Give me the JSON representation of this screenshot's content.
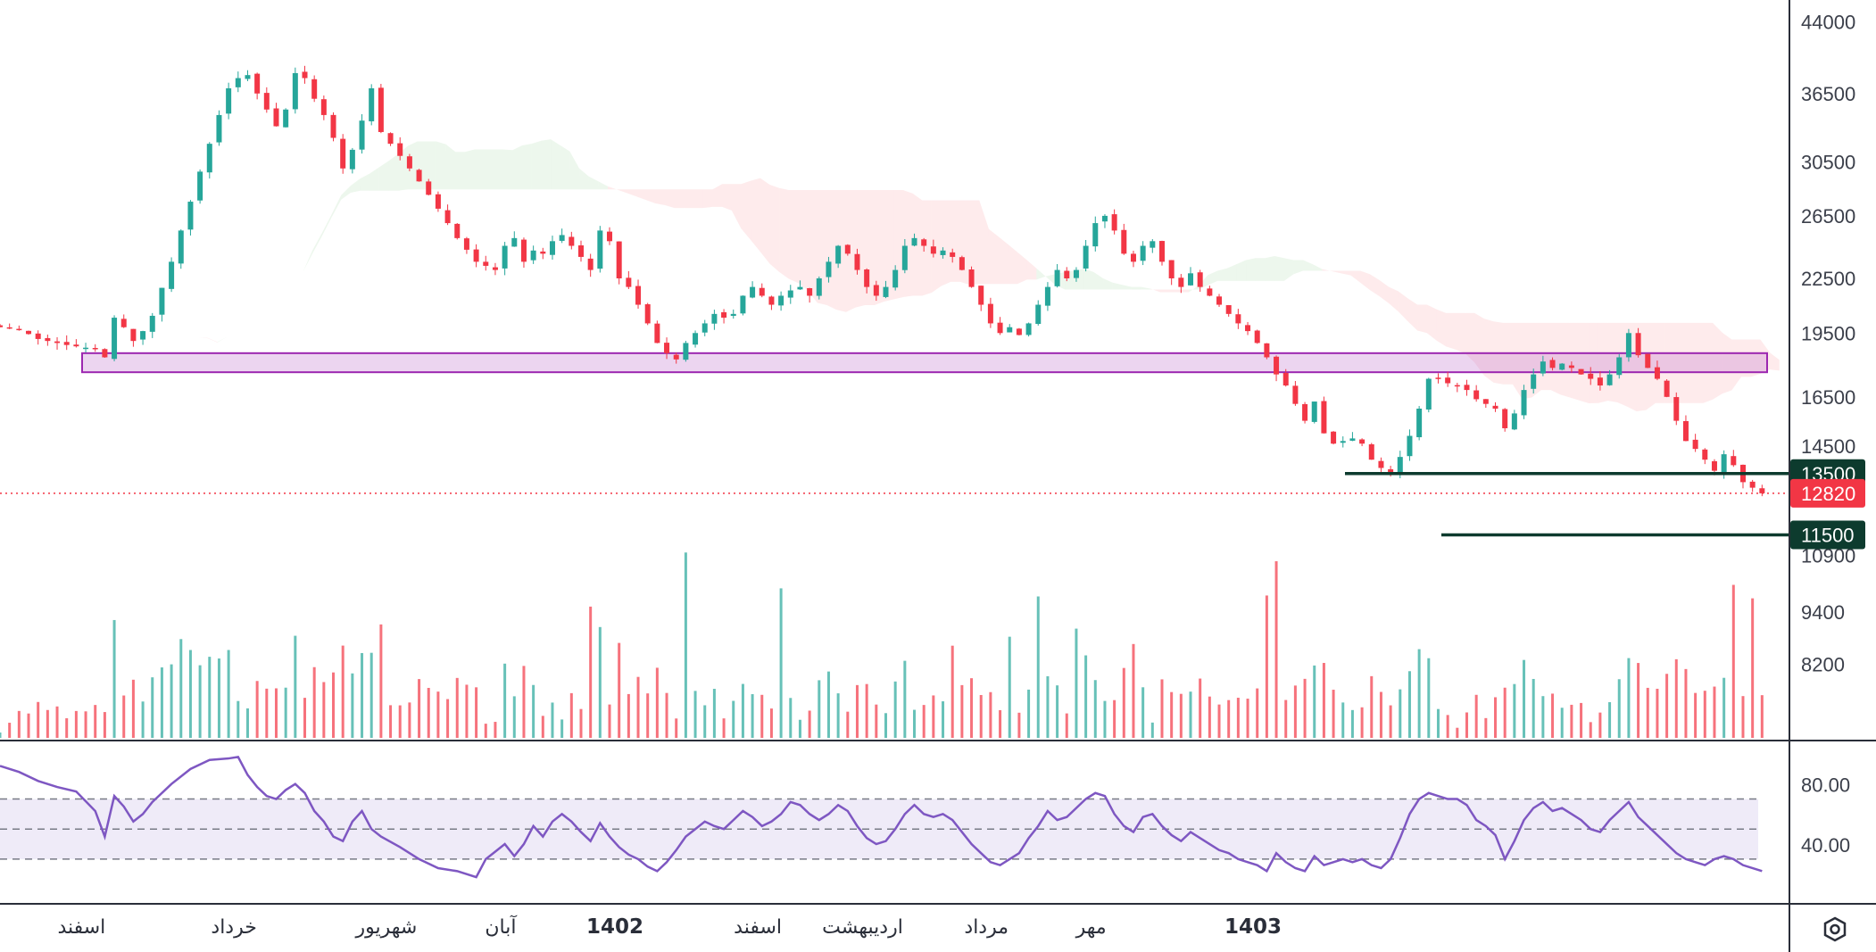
{
  "chart_data": {
    "type": "candlestick",
    "price_axis": {
      "scale": "log",
      "ticks": [
        "44000",
        "36500",
        "30500",
        "26500",
        "22500",
        "19500",
        "16500",
        "14500",
        "12820",
        "10900",
        "9400",
        "8200"
      ],
      "range": [
        7200,
        50000
      ]
    },
    "time_axis": {
      "ticks": [
        {
          "label": "اسفند",
          "bold": false
        },
        {
          "label": "خرداد",
          "bold": false
        },
        {
          "label": "شهریور",
          "bold": false
        },
        {
          "label": "آبان",
          "bold": false
        },
        {
          "label": "1402",
          "bold": true
        },
        {
          "label": "اسفند",
          "bold": false
        },
        {
          "label": "اردیبهشت",
          "bold": false
        },
        {
          "label": "مرداد",
          "bold": false
        },
        {
          "label": "مهر",
          "bold": false
        },
        {
          "label": "1403",
          "bold": true
        }
      ]
    },
    "price_tags": [
      {
        "label": "13500",
        "value": 13500,
        "color": "#0d3b2e"
      },
      {
        "label": "12820",
        "value": 12820,
        "color": "#f23645"
      },
      {
        "label": "11500",
        "value": 11500,
        "color": "#0d3b2e"
      }
    ],
    "support_levels": [
      13500,
      11500
    ],
    "last_price": 12820,
    "resistance_zone": {
      "low": 17600,
      "high": 18500
    },
    "close_path": [
      [
        0,
        19800
      ],
      [
        2,
        19700
      ],
      [
        4,
        19200
      ],
      [
        7,
        18900
      ],
      [
        10,
        18700
      ],
      [
        11,
        18300
      ],
      [
        12,
        20300
      ],
      [
        13,
        19800
      ],
      [
        14,
        19100
      ],
      [
        15,
        19600
      ],
      [
        16,
        20400
      ],
      [
        18,
        23500
      ],
      [
        20,
        27500
      ],
      [
        22,
        32000
      ],
      [
        24,
        37000
      ],
      [
        25,
        38000
      ],
      [
        26,
        38300
      ],
      [
        27,
        36500
      ],
      [
        28,
        35000
      ],
      [
        29,
        33500
      ],
      [
        30,
        35000
      ],
      [
        31,
        38500
      ],
      [
        32,
        38000
      ],
      [
        33,
        36000
      ],
      [
        34,
        34500
      ],
      [
        35,
        32500
      ],
      [
        36,
        30000
      ],
      [
        37,
        31500
      ],
      [
        38,
        34000
      ],
      [
        39,
        37000
      ],
      [
        40,
        33000
      ],
      [
        42,
        31000
      ],
      [
        44,
        29000
      ],
      [
        46,
        27000
      ],
      [
        48,
        25000
      ],
      [
        50,
        23500
      ],
      [
        52,
        23000
      ],
      [
        53,
        24500
      ],
      [
        54,
        25000
      ],
      [
        55,
        23500
      ],
      [
        56,
        24200
      ],
      [
        57,
        24000
      ],
      [
        58,
        24800
      ],
      [
        59,
        25200
      ],
      [
        60,
        24500
      ],
      [
        61,
        23800
      ],
      [
        62,
        23000
      ],
      [
        63,
        25500
      ],
      [
        64,
        24800
      ],
      [
        65,
        22500
      ],
      [
        66,
        22000
      ],
      [
        67,
        21000
      ],
      [
        68,
        20000
      ],
      [
        69,
        19000
      ],
      [
        70,
        18500
      ],
      [
        71,
        18200
      ],
      [
        72,
        19000
      ],
      [
        73,
        19500
      ],
      [
        74,
        20000
      ],
      [
        75,
        20500
      ],
      [
        76,
        20300
      ],
      [
        77,
        20500
      ],
      [
        78,
        21500
      ],
      [
        79,
        22000
      ],
      [
        80,
        21500
      ],
      [
        81,
        21000
      ],
      [
        82,
        21500
      ],
      [
        83,
        21800
      ],
      [
        84,
        22000
      ],
      [
        85,
        21500
      ],
      [
        86,
        22500
      ],
      [
        87,
        23500
      ],
      [
        88,
        24500
      ],
      [
        89,
        24000
      ],
      [
        90,
        23000
      ],
      [
        91,
        22000
      ],
      [
        92,
        21500
      ],
      [
        93,
        22000
      ],
      [
        94,
        23000
      ],
      [
        95,
        24500
      ],
      [
        96,
        25000
      ],
      [
        97,
        24500
      ],
      [
        98,
        24000
      ],
      [
        99,
        24200
      ],
      [
        100,
        23800
      ],
      [
        101,
        23000
      ],
      [
        102,
        22000
      ],
      [
        103,
        21000
      ],
      [
        104,
        20000
      ],
      [
        105,
        19500
      ],
      [
        106,
        19800
      ],
      [
        107,
        19400
      ],
      [
        108,
        20000
      ],
      [
        109,
        21000
      ],
      [
        110,
        22000
      ],
      [
        111,
        23000
      ],
      [
        112,
        22500
      ],
      [
        113,
        23000
      ],
      [
        114,
        24500
      ],
      [
        115,
        26000
      ],
      [
        116,
        26500
      ],
      [
        117,
        25500
      ],
      [
        118,
        24000
      ],
      [
        119,
        23500
      ],
      [
        120,
        24500
      ],
      [
        121,
        24800
      ],
      [
        122,
        23500
      ],
      [
        123,
        22500
      ],
      [
        124,
        22000
      ],
      [
        125,
        22800
      ],
      [
        126,
        22000
      ],
      [
        127,
        21500
      ],
      [
        128,
        21000
      ],
      [
        129,
        20500
      ],
      [
        130,
        20000
      ],
      [
        131,
        19600
      ],
      [
        132,
        19000
      ],
      [
        133,
        18300
      ],
      [
        134,
        17500
      ],
      [
        135,
        17000
      ],
      [
        136,
        16200
      ],
      [
        137,
        15500
      ],
      [
        138,
        16300
      ],
      [
        139,
        15000
      ],
      [
        140,
        14600
      ],
      [
        141,
        14700
      ],
      [
        142,
        14800
      ],
      [
        143,
        14600
      ],
      [
        144,
        14000
      ],
      [
        145,
        13700
      ],
      [
        146,
        13550
      ],
      [
        147,
        14100
      ],
      [
        148,
        14900
      ],
      [
        149,
        16000
      ],
      [
        150,
        17300
      ],
      [
        151,
        17300
      ],
      [
        152,
        17100
      ],
      [
        153,
        17000
      ],
      [
        154,
        16800
      ],
      [
        155,
        16400
      ],
      [
        156,
        16200
      ],
      [
        157,
        16000
      ],
      [
        158,
        15200
      ],
      [
        159,
        15800
      ],
      [
        160,
        16800
      ],
      [
        161,
        17500
      ],
      [
        162,
        18100
      ],
      [
        163,
        17800
      ],
      [
        164,
        18000
      ],
      [
        165,
        17800
      ],
      [
        166,
        17500
      ],
      [
        167,
        17300
      ],
      [
        168,
        17000
      ],
      [
        169,
        17500
      ],
      [
        170,
        18300
      ],
      [
        171,
        19500
      ],
      [
        172,
        18400
      ],
      [
        173,
        17800
      ],
      [
        174,
        17300
      ],
      [
        175,
        16500
      ],
      [
        176,
        15500
      ],
      [
        177,
        14700
      ],
      [
        178,
        14400
      ],
      [
        179,
        14000
      ],
      [
        180,
        13600
      ],
      [
        181,
        14200
      ],
      [
        182,
        13800
      ],
      [
        183,
        13200
      ],
      [
        185,
        12820
      ]
    ],
    "rsi": {
      "levels": [
        70,
        50,
        30
      ],
      "labels": [
        "80.00",
        "40.00"
      ],
      "range": [
        5,
        100
      ],
      "path": [
        [
          0,
          92
        ],
        [
          2,
          88
        ],
        [
          4,
          82
        ],
        [
          6,
          78
        ],
        [
          8,
          75
        ],
        [
          10,
          62
        ],
        [
          11,
          45
        ],
        [
          12,
          72
        ],
        [
          13,
          65
        ],
        [
          14,
          55
        ],
        [
          15,
          60
        ],
        [
          16,
          68
        ],
        [
          18,
          80
        ],
        [
          20,
          90
        ],
        [
          22,
          96
        ],
        [
          24,
          97
        ],
        [
          25,
          98
        ],
        [
          26,
          86
        ],
        [
          27,
          78
        ],
        [
          28,
          72
        ],
        [
          29,
          70
        ],
        [
          30,
          76
        ],
        [
          31,
          80
        ],
        [
          32,
          74
        ],
        [
          33,
          62
        ],
        [
          34,
          55
        ],
        [
          35,
          45
        ],
        [
          36,
          42
        ],
        [
          37,
          55
        ],
        [
          38,
          62
        ],
        [
          39,
          50
        ],
        [
          40,
          45
        ],
        [
          42,
          38
        ],
        [
          44,
          30
        ],
        [
          46,
          24
        ],
        [
          48,
          22
        ],
        [
          50,
          18
        ],
        [
          51,
          30
        ],
        [
          52,
          35
        ],
        [
          53,
          40
        ],
        [
          54,
          32
        ],
        [
          55,
          40
        ],
        [
          56,
          52
        ],
        [
          57,
          45
        ],
        [
          58,
          55
        ],
        [
          59,
          60
        ],
        [
          60,
          55
        ],
        [
          61,
          48
        ],
        [
          62,
          42
        ],
        [
          63,
          54
        ],
        [
          64,
          45
        ],
        [
          65,
          38
        ],
        [
          66,
          33
        ],
        [
          67,
          30
        ],
        [
          68,
          25
        ],
        [
          69,
          22
        ],
        [
          70,
          28
        ],
        [
          71,
          36
        ],
        [
          72,
          45
        ],
        [
          73,
          50
        ],
        [
          74,
          55
        ],
        [
          75,
          52
        ],
        [
          76,
          50
        ],
        [
          77,
          56
        ],
        [
          78,
          62
        ],
        [
          79,
          58
        ],
        [
          80,
          52
        ],
        [
          81,
          55
        ],
        [
          82,
          60
        ],
        [
          83,
          68
        ],
        [
          84,
          66
        ],
        [
          85,
          60
        ],
        [
          86,
          56
        ],
        [
          87,
          60
        ],
        [
          88,
          66
        ],
        [
          89,
          62
        ],
        [
          90,
          52
        ],
        [
          91,
          44
        ],
        [
          92,
          40
        ],
        [
          93,
          42
        ],
        [
          94,
          50
        ],
        [
          95,
          60
        ],
        [
          96,
          66
        ],
        [
          97,
          60
        ],
        [
          98,
          58
        ],
        [
          99,
          60
        ],
        [
          100,
          56
        ],
        [
          101,
          48
        ],
        [
          102,
          40
        ],
        [
          103,
          34
        ],
        [
          104,
          28
        ],
        [
          105,
          26
        ],
        [
          106,
          30
        ],
        [
          107,
          34
        ],
        [
          108,
          44
        ],
        [
          109,
          52
        ],
        [
          110,
          62
        ],
        [
          111,
          56
        ],
        [
          112,
          58
        ],
        [
          113,
          64
        ],
        [
          114,
          70
        ],
        [
          115,
          74
        ],
        [
          116,
          72
        ],
        [
          117,
          60
        ],
        [
          118,
          52
        ],
        [
          119,
          48
        ],
        [
          120,
          58
        ],
        [
          121,
          60
        ],
        [
          122,
          52
        ],
        [
          123,
          46
        ],
        [
          124,
          42
        ],
        [
          125,
          48
        ],
        [
          126,
          44
        ],
        [
          127,
          40
        ],
        [
          128,
          36
        ],
        [
          129,
          34
        ],
        [
          130,
          30
        ],
        [
          131,
          28
        ],
        [
          132,
          26
        ],
        [
          133,
          22
        ],
        [
          134,
          34
        ],
        [
          135,
          28
        ],
        [
          136,
          24
        ],
        [
          137,
          22
        ],
        [
          138,
          32
        ],
        [
          139,
          26
        ],
        [
          140,
          28
        ],
        [
          141,
          30
        ],
        [
          142,
          28
        ],
        [
          143,
          30
        ],
        [
          144,
          26
        ],
        [
          145,
          24
        ],
        [
          146,
          30
        ],
        [
          147,
          44
        ],
        [
          148,
          60
        ],
        [
          149,
          70
        ],
        [
          150,
          74
        ],
        [
          151,
          72
        ],
        [
          152,
          70
        ],
        [
          153,
          70
        ],
        [
          154,
          66
        ],
        [
          155,
          56
        ],
        [
          156,
          52
        ],
        [
          157,
          46
        ],
        [
          158,
          30
        ],
        [
          159,
          42
        ],
        [
          160,
          56
        ],
        [
          161,
          64
        ],
        [
          162,
          68
        ],
        [
          163,
          62
        ],
        [
          164,
          64
        ],
        [
          165,
          60
        ],
        [
          166,
          56
        ],
        [
          167,
          50
        ],
        [
          168,
          48
        ],
        [
          169,
          56
        ],
        [
          170,
          62
        ],
        [
          171,
          68
        ],
        [
          172,
          58
        ],
        [
          173,
          52
        ],
        [
          174,
          46
        ],
        [
          175,
          40
        ],
        [
          176,
          34
        ],
        [
          177,
          30
        ],
        [
          178,
          28
        ],
        [
          179,
          26
        ],
        [
          180,
          30
        ],
        [
          181,
          32
        ],
        [
          182,
          30
        ],
        [
          183,
          26
        ],
        [
          185,
          22
        ]
      ]
    }
  },
  "settings_icon": "gear-icon"
}
